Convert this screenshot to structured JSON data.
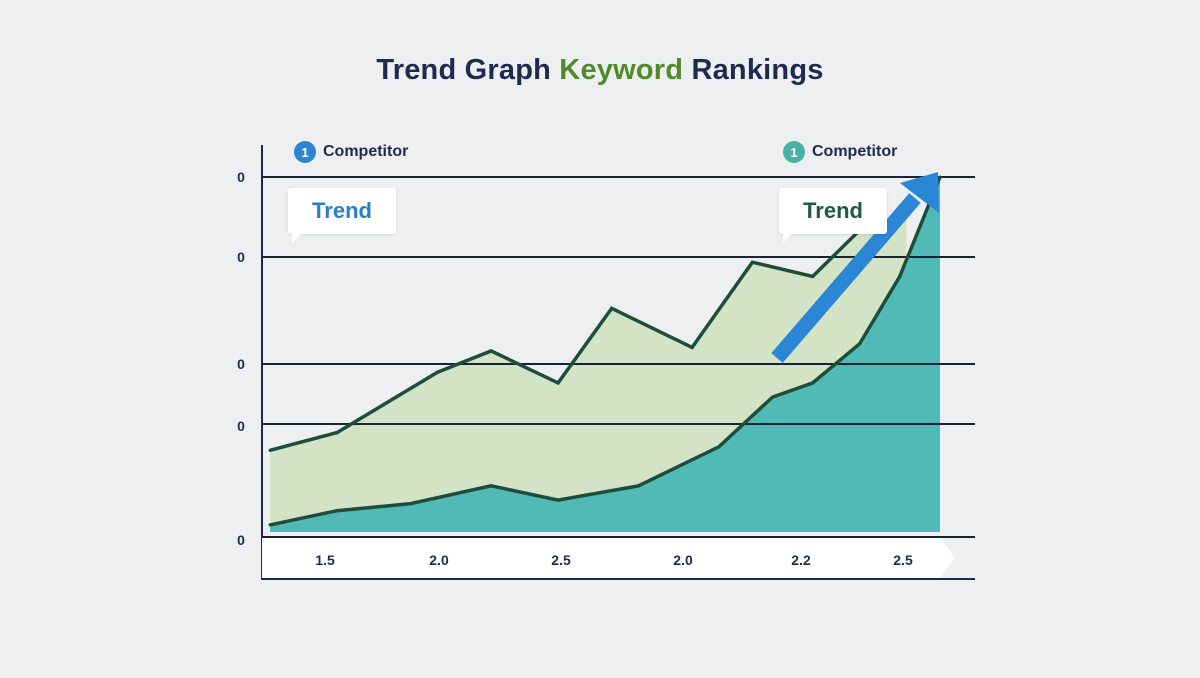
{
  "title": {
    "part1": "Trend Graph",
    "accent": "Keyword",
    "part2": "Rankings"
  },
  "colors": {
    "background": "#eeeff1",
    "title": "#1d2b4f",
    "title_accent": "#4f8a2b",
    "area_light": "#d3e3c6",
    "area_teal": "#4fbab6",
    "line": "#1e4d3c",
    "arrow": "#2b86d6",
    "axis": "#1d2b4f"
  },
  "legend": [
    {
      "badge": "1",
      "label": "Competitor",
      "badge_color": "#2e86d0",
      "icon": "number-badge-icon"
    },
    {
      "badge": "1",
      "label": "Competitor",
      "badge_color": "#48b0a4",
      "icon": "number-badge-icon"
    }
  ],
  "callouts": [
    {
      "text": "Trend",
      "color": "#2b7fc2"
    },
    {
      "text": "Trend",
      "color": "#1e5a45"
    }
  ],
  "chart_data": {
    "type": "area",
    "x_tick_labels": [
      "1.5",
      "2.0",
      "2.5",
      "2.0",
      "2.2",
      "2.5"
    ],
    "y_tick_labels": [
      "0",
      "0",
      "0",
      "0",
      "0"
    ],
    "series": [
      {
        "x": [
          0.0,
          0.1,
          0.25,
          0.33,
          0.43,
          0.51,
          0.63,
          0.72,
          0.81,
          0.88,
          0.95
        ],
        "y": [
          0.23,
          0.28,
          0.45,
          0.51,
          0.42,
          0.63,
          0.52,
          0.76,
          0.72,
          0.85,
          0.89
        ]
      },
      {
        "x": [
          0.0,
          0.1,
          0.21,
          0.33,
          0.43,
          0.55,
          0.67,
          0.75,
          0.81,
          0.88,
          0.94,
          1.0
        ],
        "y": [
          0.02,
          0.06,
          0.08,
          0.13,
          0.09,
          0.13,
          0.24,
          0.38,
          0.42,
          0.53,
          0.72,
          1.0
        ]
      }
    ],
    "trend_arrow": true,
    "ylim": [
      0,
      1
    ],
    "grid": true
  }
}
